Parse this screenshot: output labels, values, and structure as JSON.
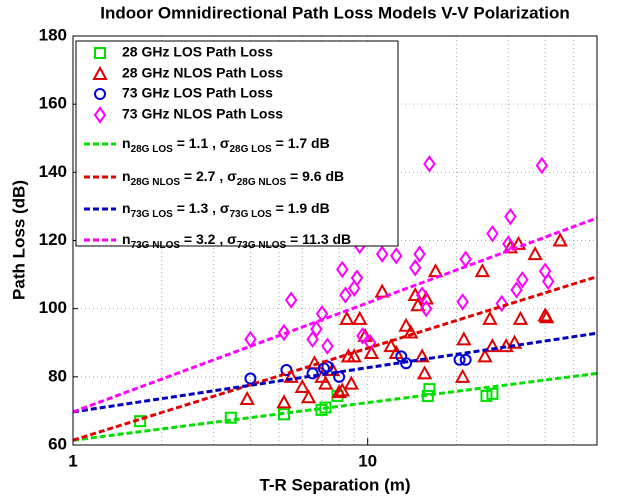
{
  "chart_data": {
    "type": "scatter",
    "title": "Indoor Omnidirectional Path Loss Models V-V Polarization",
    "xlabel": "T-R Separation (m)",
    "ylabel": "Path Loss (dB)",
    "xscale": "log",
    "xlim": [
      1,
      60
    ],
    "xticks": [
      1,
      10
    ],
    "ylim": [
      60,
      180
    ],
    "yticks": [
      60,
      80,
      100,
      120,
      140,
      160,
      180
    ],
    "grid": true,
    "legend": "upper left",
    "series": [
      {
        "name": "28 GHz LOS Path Loss",
        "color": "#00e000",
        "marker": "square",
        "x": [
          1.69,
          3.43,
          5.2,
          6.97,
          7.19,
          7.9,
          16.0,
          16.2,
          25.3,
          26.5
        ],
        "values": [
          67,
          68,
          69,
          70.3,
          71,
          74.4,
          74.4,
          76.4,
          74.4,
          75
        ]
      },
      {
        "name": "28 GHz NLOS Path Loss",
        "color": "#e00000",
        "marker": "triangle",
        "x": [
          3.9,
          5.2,
          5.5,
          6.0,
          6.3,
          6.6,
          7.0,
          7.2,
          7.6,
          8.0,
          8.2,
          8.5,
          8.6,
          8.8,
          9.0,
          9.4,
          9.8,
          10.3,
          12.0,
          12.5,
          11.2,
          13.5,
          14.0,
          14.5,
          14.8,
          15.3,
          15.6,
          15.8,
          17.0,
          21.0,
          21.2,
          24.5,
          25.0,
          26.0,
          26.5,
          29.5,
          30.5,
          31.5,
          32.5,
          33,
          37,
          40,
          40.5,
          45
        ],
        "values": [
          73.5,
          72.5,
          80,
          77,
          74,
          84,
          80,
          78,
          82,
          75.5,
          76,
          97,
          86,
          78,
          86,
          97,
          92,
          87,
          89,
          87,
          105,
          95,
          93,
          104,
          101,
          86,
          81,
          103,
          111,
          80,
          91,
          111,
          86,
          97,
          89,
          89,
          118,
          90,
          119,
          97,
          116,
          98,
          97.5,
          120
        ]
      },
      {
        "name": "73 GHz LOS Path Loss",
        "color": "#0000e0",
        "marker": "circle",
        "x": [
          4.0,
          5.3,
          6.5,
          7.1,
          7.3,
          8.0,
          13.0,
          13.5,
          20.5,
          21.5
        ],
        "values": [
          79.5,
          82,
          81,
          82.5,
          83,
          80,
          86,
          84,
          85,
          85
        ]
      },
      {
        "name": "73 GHz NLOS Path Loss",
        "color": "#ff00ff",
        "marker": "diamond",
        "x": [
          4.0,
          5.2,
          5.5,
          6.5,
          6.7,
          7.0,
          7.3,
          8.2,
          8.4,
          9.0,
          9.2,
          9.4,
          9.6,
          10.2,
          11.2,
          12.5,
          14.5,
          15.0,
          15.3,
          15.8,
          16.2,
          21.0,
          21.5,
          26.5,
          28.5,
          30,
          30.5,
          32,
          33.5,
          39,
          40,
          41
        ],
        "values": [
          91,
          93,
          102.5,
          91,
          94,
          98.5,
          89,
          111.5,
          104,
          106,
          109,
          118.5,
          92,
          90,
          116,
          115.5,
          112,
          116,
          104,
          100,
          142.5,
          102,
          114.5,
          122,
          101.5,
          119,
          127,
          105.5,
          108.5,
          142,
          111,
          108
        ]
      },
      {
        "name": [
          "n",
          "28G LOS",
          " = 1.1 , σ",
          "28G LOS",
          " = 1.7 dB"
        ],
        "color": "#00e000",
        "mode": "dashed-line",
        "x": [
          1,
          60
        ],
        "values": [
          61.4,
          81.0
        ]
      },
      {
        "name": [
          "n",
          "28G NLOS",
          " = 2.7 , σ",
          "28G NLOS",
          " = 9.6 dB"
        ],
        "color": "#e00000",
        "mode": "dashed-line",
        "x": [
          1,
          60
        ],
        "values": [
          61.4,
          109.4
        ]
      },
      {
        "name": [
          "n",
          "73G LOS",
          " = 1.3 , σ",
          "73G LOS",
          " = 1.9 dB"
        ],
        "color": "#0000c0",
        "mode": "dashed-line",
        "x": [
          1,
          60
        ],
        "values": [
          69.7,
          92.8
        ]
      },
      {
        "name": [
          "n",
          "73G NLOS",
          " = 3.2 , σ",
          "73G NLOS",
          " = 11.3 dB"
        ],
        "color": "#ff00ff",
        "mode": "dashed-line",
        "x": [
          1,
          60
        ],
        "values": [
          69.7,
          126.6
        ]
      }
    ]
  }
}
